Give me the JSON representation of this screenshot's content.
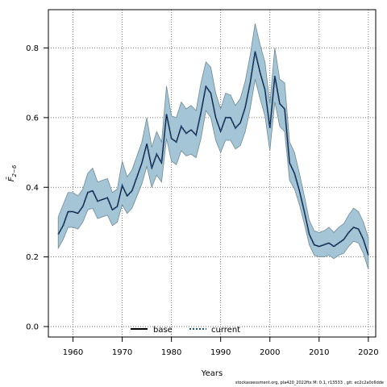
{
  "chart_data": {
    "type": "line",
    "title": "",
    "xlabel": "Years",
    "ylabel": "F̄",
    "ylabel_subscript": "2−6",
    "xlim": [
      1955,
      2021.5
    ],
    "ylim": [
      -0.03,
      0.91
    ],
    "xticks": [
      1960,
      1970,
      1980,
      1990,
      2000,
      2010,
      2020
    ],
    "xtick_labels": [
      "1960",
      "1970",
      "1980",
      "1990",
      "2000",
      "2010",
      "2020"
    ],
    "yticks": [
      0.0,
      0.2,
      0.4,
      0.6,
      0.8
    ],
    "ytick_labels": [
      "0.0",
      "0.2",
      "0.4",
      "0.6",
      "0.8"
    ],
    "grid": true,
    "legend_position": "bottom-center",
    "legend": [
      {
        "label": "base",
        "style": "solid",
        "color": "#000000"
      },
      {
        "label": "current",
        "style": "dotted",
        "color": "#1f4e8c"
      }
    ],
    "band_color": "#a3c5d6",
    "band_edge_color": "#6f8a96",
    "x": [
      1957,
      1958,
      1959,
      1960,
      1961,
      1962,
      1963,
      1964,
      1965,
      1966,
      1967,
      1968,
      1969,
      1970,
      1971,
      1972,
      1973,
      1974,
      1975,
      1976,
      1977,
      1978,
      1979,
      1980,
      1981,
      1982,
      1983,
      1984,
      1985,
      1986,
      1987,
      1988,
      1989,
      1990,
      1991,
      1992,
      1993,
      1994,
      1995,
      1996,
      1997,
      1998,
      1999,
      2000,
      2001,
      2002,
      2003,
      2004,
      2005,
      2006,
      2007,
      2008,
      2009,
      2010,
      2011,
      2012,
      2013,
      2014,
      2015,
      2016,
      2017,
      2018,
      2019,
      2020
    ],
    "series": [
      {
        "name": "base",
        "values": [
          0.265,
          0.29,
          0.33,
          0.33,
          0.325,
          0.345,
          0.385,
          0.39,
          0.36,
          0.365,
          0.37,
          0.335,
          0.345,
          0.405,
          0.375,
          0.39,
          0.43,
          0.47,
          0.525,
          0.455,
          0.495,
          0.47,
          0.61,
          0.54,
          0.53,
          0.575,
          0.555,
          0.565,
          0.55,
          0.615,
          0.69,
          0.67,
          0.6,
          0.56,
          0.6,
          0.6,
          0.57,
          0.585,
          0.63,
          0.7,
          0.79,
          0.73,
          0.68,
          0.57,
          0.72,
          0.64,
          0.625,
          0.47,
          0.44,
          0.39,
          0.33,
          0.265,
          0.235,
          0.23,
          0.235,
          0.24,
          0.23,
          0.24,
          0.25,
          0.27,
          0.285,
          0.28,
          0.25,
          0.205
        ]
      },
      {
        "name": "current",
        "values": [
          0.265,
          0.29,
          0.33,
          0.33,
          0.325,
          0.345,
          0.385,
          0.39,
          0.36,
          0.365,
          0.37,
          0.335,
          0.345,
          0.405,
          0.375,
          0.39,
          0.43,
          0.47,
          0.525,
          0.455,
          0.495,
          0.47,
          0.61,
          0.54,
          0.53,
          0.575,
          0.555,
          0.565,
          0.55,
          0.615,
          0.69,
          0.67,
          0.6,
          0.56,
          0.6,
          0.6,
          0.57,
          0.585,
          0.63,
          0.7,
          0.79,
          0.73,
          0.68,
          0.57,
          0.72,
          0.64,
          0.625,
          0.47,
          0.44,
          0.39,
          0.33,
          0.265,
          0.235,
          0.23,
          0.235,
          0.24,
          0.23,
          0.24,
          0.25,
          0.27,
          0.285,
          0.28,
          0.25,
          0.205
        ]
      }
    ],
    "band_upper": [
      0.315,
      0.35,
      0.385,
      0.385,
      0.375,
      0.395,
      0.44,
      0.455,
      0.415,
      0.42,
      0.425,
      0.385,
      0.395,
      0.475,
      0.43,
      0.45,
      0.49,
      0.53,
      0.6,
      0.515,
      0.56,
      0.53,
      0.69,
      0.605,
      0.6,
      0.645,
      0.625,
      0.635,
      0.62,
      0.7,
      0.76,
      0.745,
      0.67,
      0.625,
      0.67,
      0.665,
      0.635,
      0.655,
      0.705,
      0.78,
      0.87,
      0.81,
      0.76,
      0.64,
      0.8,
      0.71,
      0.7,
      0.53,
      0.5,
      0.44,
      0.375,
      0.305,
      0.275,
      0.27,
      0.275,
      0.285,
      0.27,
      0.285,
      0.295,
      0.32,
      0.34,
      0.33,
      0.3,
      0.255
    ],
    "band_lower": [
      0.225,
      0.25,
      0.285,
      0.285,
      0.28,
      0.3,
      0.335,
      0.34,
      0.31,
      0.315,
      0.32,
      0.29,
      0.3,
      0.35,
      0.325,
      0.34,
      0.375,
      0.41,
      0.46,
      0.4,
      0.435,
      0.415,
      0.54,
      0.475,
      0.465,
      0.505,
      0.49,
      0.495,
      0.485,
      0.54,
      0.62,
      0.6,
      0.535,
      0.5,
      0.535,
      0.535,
      0.51,
      0.52,
      0.56,
      0.625,
      0.71,
      0.655,
      0.605,
      0.505,
      0.645,
      0.575,
      0.56,
      0.42,
      0.395,
      0.35,
      0.295,
      0.235,
      0.205,
      0.2,
      0.2,
      0.205,
      0.195,
      0.205,
      0.21,
      0.23,
      0.245,
      0.24,
      0.21,
      0.165
    ],
    "footer_text": "stockassessment.org, pla420_2022ftx M: 0.1, r13533 , git: ec2c2a0c6dde"
  }
}
